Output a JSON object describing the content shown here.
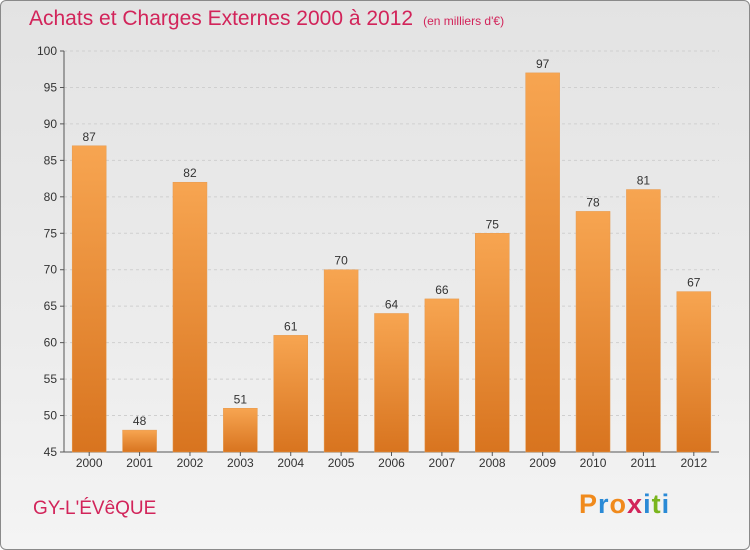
{
  "title": "Achats et Charges Externes 2000 à 2012",
  "subtitle": "(en milliers d'€)",
  "place_name": "GY-L'ÉVêQUE",
  "brand": {
    "letters": [
      "P",
      "r",
      "o",
      "x",
      "i",
      "t",
      "i"
    ],
    "colors": [
      "#f08a1c",
      "#2a8ad6",
      "#f08a1c",
      "#d2245a",
      "#2a8ad6",
      "#7ab51d",
      "#2a8ad6"
    ]
  },
  "colors": {
    "bar_top": "#f7a551",
    "bar_bottom": "#d8741f",
    "accent": "#d2245a"
  },
  "chart_data": {
    "type": "bar",
    "categories": [
      "2000",
      "2001",
      "2002",
      "2003",
      "2004",
      "2005",
      "2006",
      "2007",
      "2008",
      "2009",
      "2010",
      "2011",
      "2012"
    ],
    "values": [
      87,
      48,
      82,
      51,
      61,
      70,
      64,
      66,
      75,
      97,
      78,
      81,
      67
    ],
    "ylim": [
      45,
      100
    ],
    "yticks": [
      45,
      50,
      55,
      60,
      65,
      70,
      75,
      80,
      85,
      90,
      95,
      100
    ],
    "grid": true,
    "data_labels": true
  }
}
